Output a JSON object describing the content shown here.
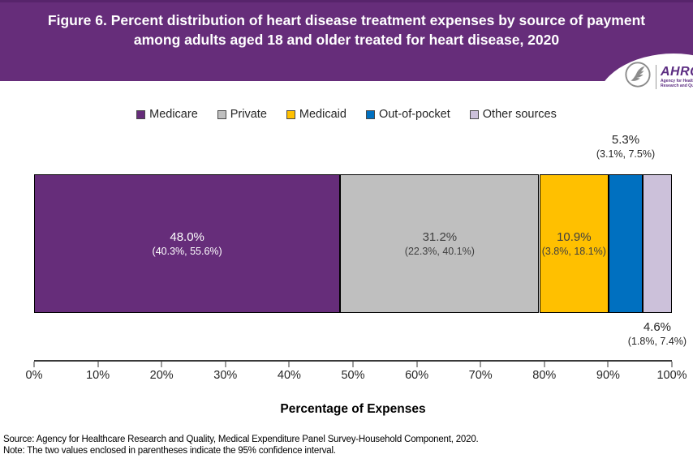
{
  "header": {
    "title": "Figure 6. Percent distribution of heart disease treatment expenses by source of payment among adults aged 18 and older treated for heart disease, 2020",
    "background_color": "#662D7A",
    "logo": {
      "name": "AHRQ",
      "tagline": "Agency for Healthcare Research and Quality"
    }
  },
  "legend": {
    "items": [
      {
        "label": "Medicare",
        "color": "#662D7A"
      },
      {
        "label": "Private",
        "color": "#BFBFBF"
      },
      {
        "label": "Medicaid",
        "color": "#FFC000"
      },
      {
        "label": "Out-of-pocket",
        "color": "#0070C0"
      },
      {
        "label": "Other sources",
        "color": "#CCC1DA"
      }
    ]
  },
  "chart_data": {
    "type": "bar",
    "orientation": "horizontal-stacked",
    "title": "Figure 6. Percent distribution of heart disease treatment expenses by source of payment among adults aged 18 and older treated for heart disease, 2020",
    "xlabel": "Percentage of Expenses",
    "xlim": [
      0,
      100
    ],
    "x_ticks": [
      "0%",
      "10%",
      "20%",
      "30%",
      "40%",
      "50%",
      "60%",
      "70%",
      "80%",
      "90%",
      "100%"
    ],
    "grid": false,
    "legend_position": "top",
    "series": [
      {
        "name": "Medicare",
        "value": 48.0,
        "label": "48.0%",
        "ci": "(40.3%, 55.6%)",
        "color": "#662D7A",
        "text_color": "#FFFFFF",
        "label_position": "inside"
      },
      {
        "name": "Private",
        "value": 31.2,
        "label": "31.2%",
        "ci": "(22.3%, 40.1%)",
        "color": "#BFBFBF",
        "text_color": "#404040",
        "label_position": "inside"
      },
      {
        "name": "Medicaid",
        "value": 10.9,
        "label": "10.9%",
        "ci": "(3.8%, 18.1%)",
        "color": "#FFC000",
        "text_color": "#404040",
        "label_position": "inside"
      },
      {
        "name": "Out-of-pocket",
        "value": 5.3,
        "label": "5.3%",
        "ci": "(3.1%, 7.5%)",
        "color": "#0070C0",
        "text_color": "#262626",
        "label_position": "above"
      },
      {
        "name": "Other sources",
        "value": 4.6,
        "label": "4.6%",
        "ci": "(1.8%, 7.4%)",
        "color": "#CCC1DA",
        "text_color": "#262626",
        "label_position": "below"
      }
    ]
  },
  "footer": {
    "source": "Source: Agency for Healthcare Research and Quality, Medical Expenditure Panel Survey-Household Component, 2020.",
    "note": "Note: The two values enclosed in parentheses indicate the 95% confidence interval."
  }
}
